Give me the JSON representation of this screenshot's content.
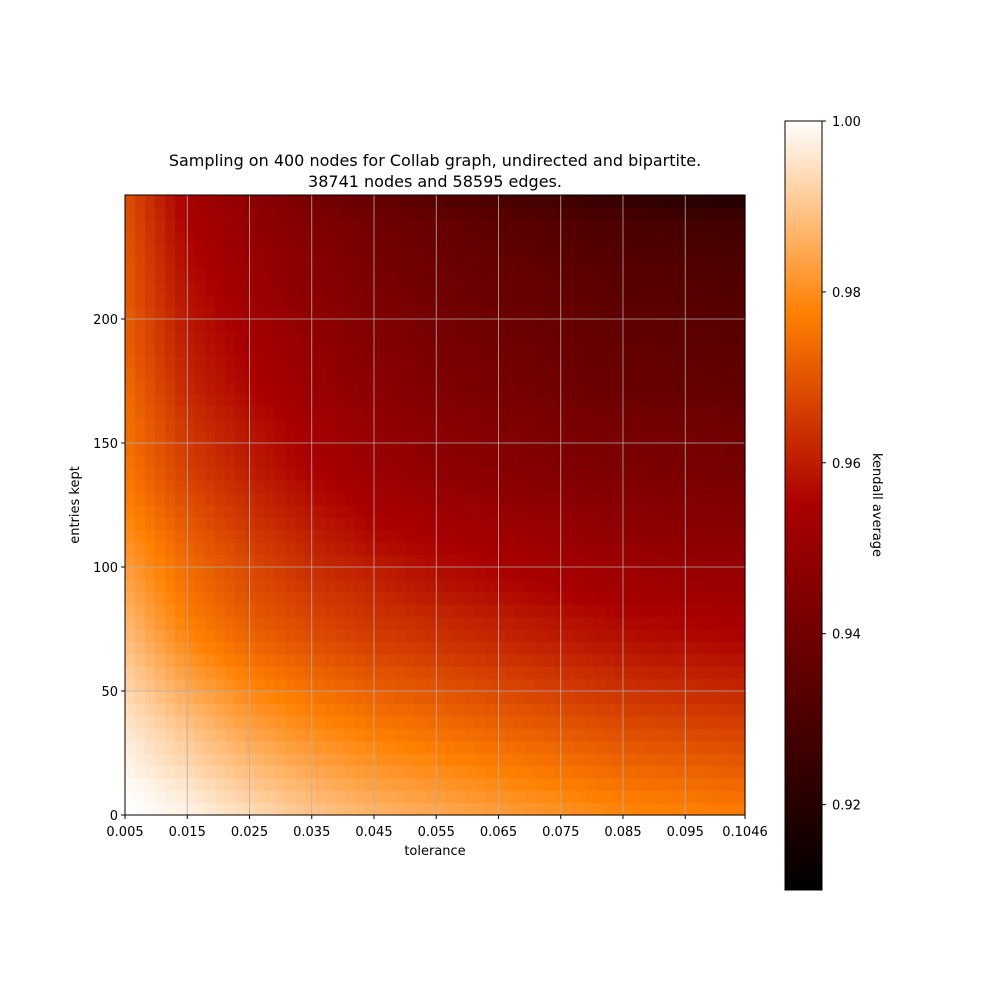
{
  "chart_data": {
    "type": "heatmap",
    "title": "Sampling on 400 nodes for Collab graph, undirected and bipartite.",
    "subtitle": "38741 nodes and 58595 edges.",
    "xlabel": "tolerance",
    "ylabel": "entries kept",
    "x_range": [
      0.005,
      0.1046
    ],
    "y_range": [
      0,
      250
    ],
    "x_ticks": [
      "0.005",
      "0.015",
      "0.025",
      "0.035",
      "0.045",
      "0.055",
      "0.065",
      "0.075",
      "0.085",
      "0.095",
      "0.1046"
    ],
    "y_ticks": [
      "0",
      "50",
      "100",
      "150",
      "200"
    ],
    "y_tick_values": [
      0,
      50,
      100,
      150,
      200
    ],
    "grid": true,
    "colormap": "gist_heat",
    "colorbar": {
      "label": "kendall average",
      "range": [
        0.91,
        1.0
      ],
      "ticks": [
        "0.92",
        "0.94",
        "0.96",
        "0.98",
        "1.00"
      ],
      "tick_values": [
        0.92,
        0.94,
        0.96,
        0.98,
        1.0
      ]
    },
    "row_entries_kept": [
      0,
      10,
      20,
      30,
      40,
      50,
      60,
      70,
      80,
      90,
      100,
      110,
      120,
      130,
      140,
      150,
      160,
      170,
      180,
      190,
      200,
      210,
      220,
      230,
      240,
      250
    ],
    "col_tolerance": [
      0.005,
      0.015,
      0.025,
      0.035,
      0.045,
      0.055,
      0.065,
      0.075,
      0.085,
      0.095,
      0.1046
    ],
    "values": [
      [
        1.0,
        0.998,
        0.994,
        0.99,
        0.987,
        0.985,
        0.983,
        0.981,
        0.979,
        0.978,
        0.977
      ],
      [
        1.0,
        0.996,
        0.991,
        0.987,
        0.984,
        0.982,
        0.98,
        0.978,
        0.976,
        0.975,
        0.974
      ],
      [
        0.998,
        0.993,
        0.988,
        0.984,
        0.981,
        0.979,
        0.977,
        0.975,
        0.973,
        0.972,
        0.971
      ],
      [
        0.997,
        0.991,
        0.985,
        0.981,
        0.978,
        0.976,
        0.974,
        0.972,
        0.97,
        0.969,
        0.968
      ],
      [
        0.995,
        0.988,
        0.982,
        0.978,
        0.975,
        0.973,
        0.971,
        0.969,
        0.967,
        0.966,
        0.965
      ],
      [
        0.993,
        0.985,
        0.979,
        0.975,
        0.972,
        0.97,
        0.968,
        0.966,
        0.964,
        0.963,
        0.962
      ],
      [
        0.991,
        0.982,
        0.976,
        0.972,
        0.969,
        0.967,
        0.965,
        0.963,
        0.961,
        0.96,
        0.959
      ],
      [
        0.989,
        0.979,
        0.973,
        0.969,
        0.966,
        0.964,
        0.962,
        0.96,
        0.958,
        0.957,
        0.956
      ],
      [
        0.987,
        0.977,
        0.971,
        0.967,
        0.964,
        0.962,
        0.96,
        0.958,
        0.956,
        0.955,
        0.954
      ],
      [
        0.985,
        0.975,
        0.969,
        0.965,
        0.962,
        0.959,
        0.957,
        0.955,
        0.953,
        0.952,
        0.951
      ],
      [
        0.983,
        0.974,
        0.968,
        0.963,
        0.96,
        0.957,
        0.955,
        0.953,
        0.952,
        0.95,
        0.949
      ],
      [
        0.981,
        0.972,
        0.966,
        0.961,
        0.957,
        0.955,
        0.953,
        0.951,
        0.949,
        0.948,
        0.947
      ],
      [
        0.979,
        0.97,
        0.964,
        0.959,
        0.955,
        0.953,
        0.951,
        0.949,
        0.947,
        0.946,
        0.945
      ],
      [
        0.977,
        0.968,
        0.962,
        0.957,
        0.953,
        0.95,
        0.948,
        0.946,
        0.945,
        0.944,
        0.943
      ],
      [
        0.976,
        0.966,
        0.96,
        0.955,
        0.951,
        0.948,
        0.946,
        0.944,
        0.943,
        0.942,
        0.941
      ],
      [
        0.975,
        0.965,
        0.959,
        0.954,
        0.95,
        0.947,
        0.945,
        0.943,
        0.942,
        0.941,
        0.94
      ],
      [
        0.975,
        0.964,
        0.958,
        0.953,
        0.949,
        0.946,
        0.944,
        0.942,
        0.941,
        0.94,
        0.939
      ],
      [
        0.974,
        0.962,
        0.956,
        0.951,
        0.947,
        0.944,
        0.942,
        0.94,
        0.938,
        0.937,
        0.936
      ],
      [
        0.973,
        0.961,
        0.955,
        0.95,
        0.946,
        0.943,
        0.941,
        0.939,
        0.937,
        0.936,
        0.935
      ],
      [
        0.972,
        0.96,
        0.954,
        0.949,
        0.945,
        0.942,
        0.94,
        0.938,
        0.936,
        0.935,
        0.934
      ],
      [
        0.972,
        0.959,
        0.953,
        0.948,
        0.944,
        0.941,
        0.939,
        0.937,
        0.935,
        0.934,
        0.933
      ],
      [
        0.971,
        0.958,
        0.952,
        0.947,
        0.943,
        0.94,
        0.938,
        0.936,
        0.934,
        0.933,
        0.932
      ],
      [
        0.971,
        0.957,
        0.951,
        0.946,
        0.942,
        0.939,
        0.937,
        0.935,
        0.933,
        0.932,
        0.931
      ],
      [
        0.97,
        0.956,
        0.95,
        0.945,
        0.941,
        0.938,
        0.935,
        0.933,
        0.931,
        0.93,
        0.929
      ],
      [
        0.97,
        0.955,
        0.949,
        0.944,
        0.94,
        0.937,
        0.934,
        0.932,
        0.93,
        0.928,
        0.927
      ],
      [
        0.969,
        0.954,
        0.947,
        0.941,
        0.936,
        0.932,
        0.929,
        0.926,
        0.923,
        0.92,
        0.918
      ]
    ]
  }
}
